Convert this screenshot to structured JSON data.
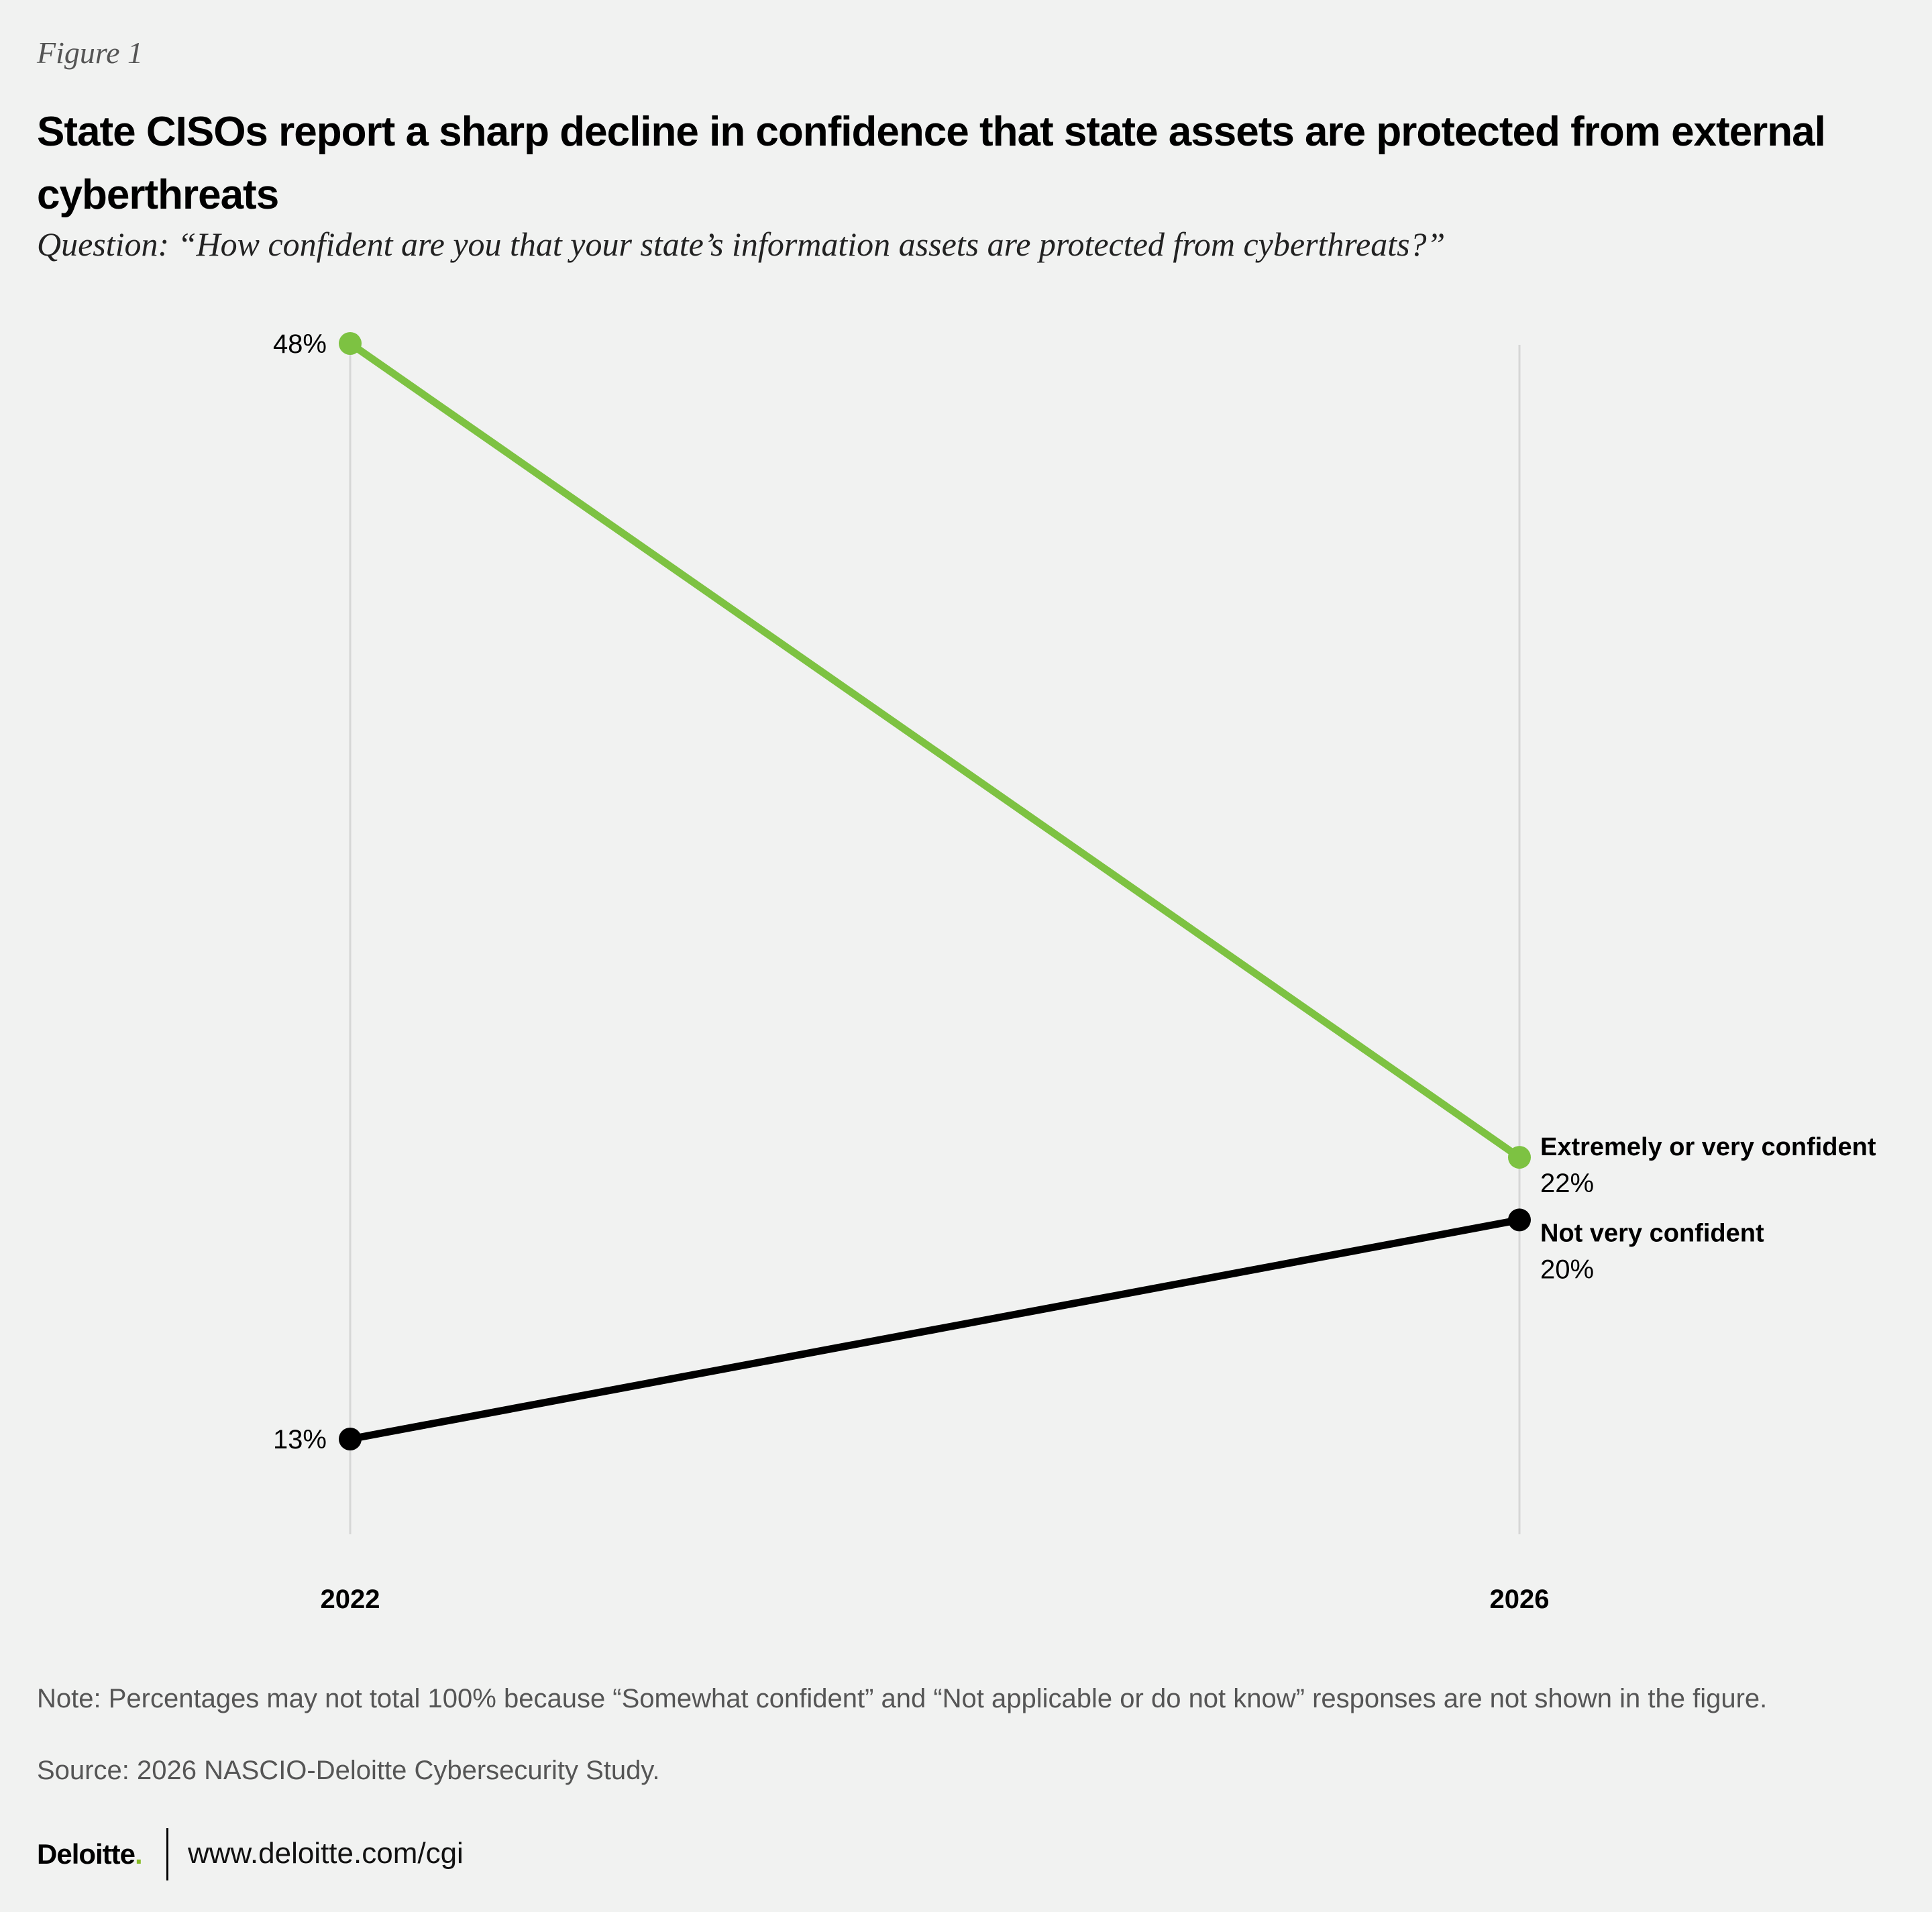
{
  "figure_label": "Figure 1",
  "title": "State CISOs report a sharp decline in confidence that state assets are protected from external cyberthreats",
  "question": "Question: “How confident are you that your state’s information assets are protected from cyberthreats?”",
  "note": "Note: Percentages may not total 100% because “Somewhat confident” and “Not applicable or do not know” responses are not shown in the figure.",
  "source": "Source: 2026 NASCIO-Deloitte Cybersecurity Study.",
  "footer": {
    "logo": "Deloitte",
    "url": "www.deloitte.com/cgi"
  },
  "chart_data": {
    "type": "line",
    "x": [
      "2022",
      "2026"
    ],
    "ylim": [
      13,
      48
    ],
    "series": [
      {
        "name": "Extremely or very confident",
        "values": [
          48,
          22
        ],
        "labels": [
          "48%",
          "22%"
        ],
        "color": "#7dc242"
      },
      {
        "name": "Not very confident",
        "values": [
          13,
          20
        ],
        "labels": [
          "13%",
          "20%"
        ],
        "color": "#000000"
      }
    ]
  }
}
